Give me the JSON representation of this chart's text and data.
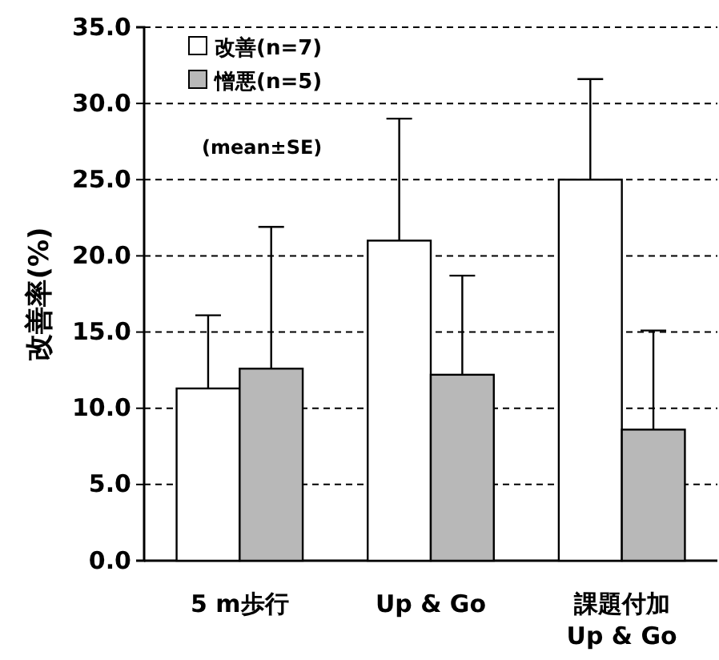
{
  "chart_data": {
    "type": "bar",
    "ylabel": "改善率(%)",
    "categories": [
      "5 m歩行",
      "Up & Go",
      "課題付加\nUp & Go"
    ],
    "series": [
      {
        "name": "改善(n=7)",
        "color": "#ffffff",
        "values": [
          11.3,
          21.0,
          25.0
        ],
        "errors": [
          [
            11.3,
            16.1
          ],
          [
            21.0,
            29.0
          ],
          [
            25.0,
            31.6
          ]
        ]
      },
      {
        "name": "憎悪(n=5)",
        "color": "#b8b8b8",
        "values": [
          12.6,
          12.2,
          8.6
        ],
        "errors": [
          [
            12.6,
            21.9
          ],
          [
            12.2,
            18.7
          ],
          [
            8.6,
            15.1
          ]
        ]
      }
    ],
    "ylim": [
      0,
      35
    ],
    "yticks": [
      {
        "value": 0,
        "label": "0.0"
      },
      {
        "value": 5,
        "label": "5.0"
      },
      {
        "value": 10,
        "label": "10.0"
      },
      {
        "value": 15,
        "label": "15.0"
      },
      {
        "value": 20,
        "label": "20.0"
      },
      {
        "value": 25,
        "label": "25.0"
      },
      {
        "value": 30,
        "label": "30.0"
      },
      {
        "value": 35,
        "label": "35.0"
      }
    ],
    "grid": "y",
    "legend": "top left",
    "annotations": [
      "(mean±SE)"
    ]
  }
}
